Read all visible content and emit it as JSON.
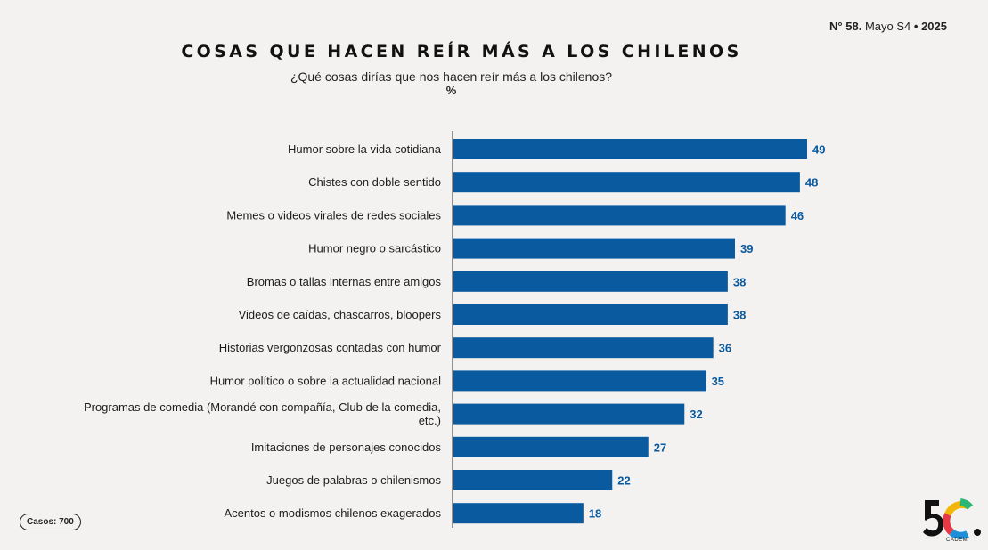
{
  "header": {
    "issue_symbol": "N°",
    "issue_number": "58.",
    "issue_period": "Mayo S4",
    "issue_separator": "•",
    "issue_year": "2025"
  },
  "title": "COSAS QUE HACEN REÍR MÁS A LOS CHILENOS",
  "subtitle": "¿Qué cosas dirías que nos hacen reír más a los chilenos?",
  "unit": "%",
  "cases_label": "Casos: 700",
  "logo": {
    "mark": "5C.",
    "name": "CADEM",
    "colors": [
      "#f2b705",
      "#e63946",
      "#1d8fd8",
      "#2bb673"
    ]
  },
  "colors": {
    "bar": "#0a5aa0",
    "value_text": "#0a5aa0",
    "label_text": "#1c1c1c",
    "axis": "#333333"
  },
  "chart_data": {
    "type": "bar",
    "orientation": "horizontal",
    "title": "COSAS QUE HACEN REÍR MÁS A LOS CHILENOS",
    "subtitle": "¿Qué cosas dirías que nos hacen reír más a los chilenos?",
    "unit": "%",
    "xlim": [
      0,
      49
    ],
    "grid": false,
    "categories": [
      "Humor sobre la vida cotidiana",
      "Chistes con doble sentido",
      "Memes o videos virales de redes sociales",
      "Humor negro o sarcástico",
      "Bromas o tallas internas entre amigos",
      "Videos de caídas, chascarros, bloopers",
      "Historias vergonzosas contadas con humor",
      "Humor político o sobre la actualidad nacional",
      [
        "Programas de comedia (Morandé con compañía, Club de la comedia,",
        "etc.)"
      ],
      "Imitaciones de personajes conocidos",
      "Juegos de palabras o chilenismos",
      "Acentos o modismos chilenos exagerados"
    ],
    "values": [
      49,
      48,
      46,
      39,
      38,
      38,
      36,
      35,
      32,
      27,
      22,
      18
    ]
  }
}
